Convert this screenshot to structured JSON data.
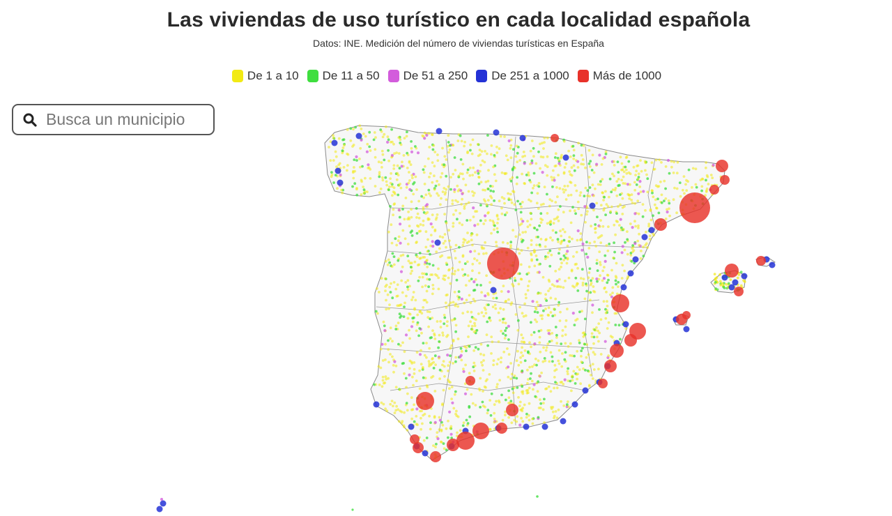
{
  "title": "Las viviendas de uso turístico en cada localidad española",
  "subtitle": "Datos: INE. Medición del número de viviendas turísticas en España",
  "legend": [
    {
      "label": "De 1 a 10",
      "color": "#f2ea14"
    },
    {
      "label": "De 11 a 50",
      "color": "#3fde3f"
    },
    {
      "label": "De 51 a 250",
      "color": "#d35cdc"
    },
    {
      "label": "De 251 a 1000",
      "color": "#2432d6"
    },
    {
      "label": "Más de 1000",
      "color": "#e8322a"
    }
  ],
  "search": {
    "placeholder": "Busca un municipio",
    "icon": "search-icon"
  },
  "map": {
    "region": "España",
    "colors": {
      "land": "#f7f7f7",
      "border": "#8a8a8a"
    }
  }
}
